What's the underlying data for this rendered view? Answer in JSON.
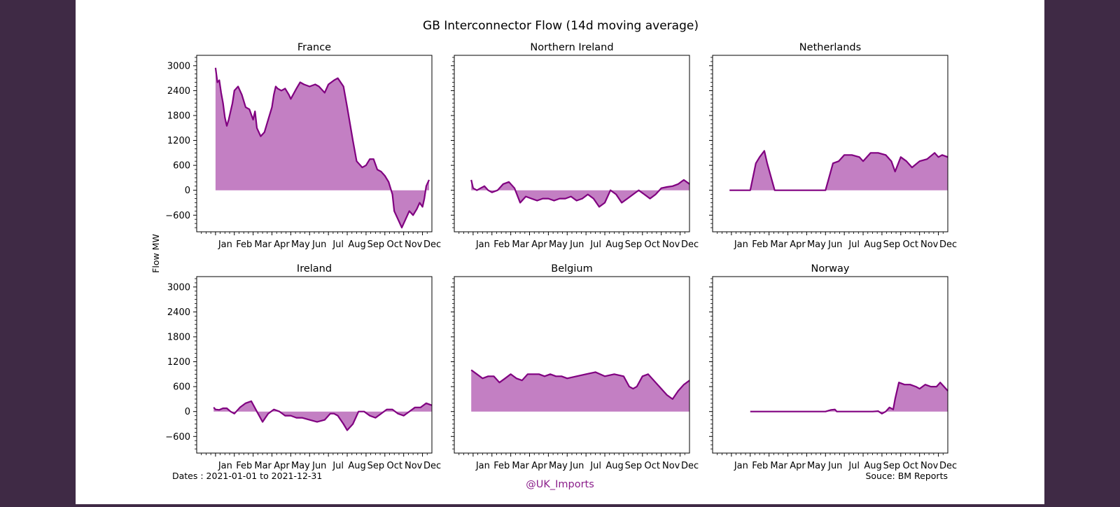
{
  "figure": {
    "title": "GB Interconnector Flow (14d moving average)",
    "ylabel": "Flow MW",
    "dates_note": "Dates : 2021-01-01 to 2021-12-31",
    "credit": "@UK_Imports",
    "source": "Souce: BM Reports",
    "colors": {
      "line": "#800080",
      "fill": "#c37fc3",
      "frame": "#000000"
    }
  },
  "chart_data": [
    {
      "type": "area",
      "title": "France",
      "ylim": [
        -1000,
        3250
      ],
      "months": [
        "Jan",
        "Feb",
        "Mar",
        "Apr",
        "May",
        "Jun",
        "Jul",
        "Aug",
        "Sep",
        "Oct",
        "Nov",
        "Dec"
      ],
      "yticks": [
        -600,
        0,
        600,
        1200,
        1800,
        2400,
        3000
      ],
      "x": [
        1,
        1.1,
        1.2,
        1.3,
        1.4,
        1.5,
        1.6,
        1.7,
        1.8,
        1.9,
        2,
        2.2,
        2.4,
        2.6,
        2.8,
        3,
        3.1,
        3.2,
        3.4,
        3.6,
        3.8,
        4,
        4.1,
        4.2,
        4.3,
        4.5,
        4.7,
        4.9,
        5,
        5.3,
        5.5,
        5.7,
        6,
        6.3,
        6.5,
        6.8,
        7,
        7.3,
        7.5,
        7.8,
        8,
        8.3,
        8.5,
        8.8,
        9,
        9.2,
        9.4,
        9.6,
        9.8,
        10,
        10.2,
        10.4,
        10.5,
        10.7,
        10.9,
        11.1,
        11.3,
        11.5,
        11.7,
        11.85,
        12,
        12.1,
        12.2,
        12.3,
        12.35
      ],
      "y": [
        2950,
        2600,
        2650,
        2350,
        2100,
        1750,
        1550,
        1700,
        1900,
        2100,
        2400,
        2500,
        2300,
        2000,
        1950,
        1700,
        1900,
        1500,
        1300,
        1400,
        1700,
        2000,
        2300,
        2500,
        2450,
        2400,
        2450,
        2300,
        2200,
        2450,
        2600,
        2550,
        2500,
        2550,
        2500,
        2350,
        2550,
        2650,
        2700,
        2500,
        2000,
        1200,
        700,
        550,
        600,
        750,
        750,
        500,
        450,
        350,
        200,
        -100,
        -500,
        -700,
        -900,
        -700,
        -500,
        -600,
        -450,
        -300,
        -400,
        -200,
        100,
        200,
        250
      ]
    },
    {
      "type": "area",
      "title": "Northern Ireland",
      "ylim": [
        -1000,
        3250
      ],
      "months": [
        "Jan",
        "Feb",
        "Mar",
        "Apr",
        "May",
        "Jun",
        "Jul",
        "Aug",
        "Sep",
        "Oct",
        "Nov",
        "Dec"
      ],
      "yticks": [
        -600,
        0,
        600,
        1200,
        1800,
        2400,
        3000
      ],
      "x": [
        0.9,
        1,
        1.2,
        1.4,
        1.6,
        1.8,
        2,
        2.3,
        2.6,
        2.9,
        3.2,
        3.5,
        3.8,
        4.1,
        4.4,
        4.7,
        5,
        5.3,
        5.6,
        5.9,
        6.2,
        6.5,
        6.8,
        7.1,
        7.4,
        7.7,
        8,
        8.3,
        8.6,
        8.9,
        9.2,
        9.5,
        9.8,
        10.1,
        10.4,
        10.7,
        11,
        11.3,
        11.6,
        11.9,
        12.2,
        12.5
      ],
      "y": [
        250,
        50,
        0,
        50,
        100,
        0,
        -50,
        0,
        150,
        200,
        50,
        -300,
        -150,
        -200,
        -250,
        -200,
        -200,
        -250,
        -200,
        -200,
        -150,
        -250,
        -200,
        -100,
        -200,
        -400,
        -300,
        0,
        -100,
        -300,
        -200,
        -100,
        0,
        -100,
        -200,
        -100,
        50,
        80,
        100,
        150,
        250,
        150
      ]
    },
    {
      "type": "area",
      "title": "Netherlands",
      "ylim": [
        -1000,
        3250
      ],
      "months": [
        "Jan",
        "Feb",
        "Mar",
        "Apr",
        "May",
        "Jun",
        "Jul",
        "Aug",
        "Sep",
        "Oct",
        "Nov",
        "Dec"
      ],
      "yticks": [
        -600,
        0,
        600,
        1200,
        1800,
        2400,
        3000
      ],
      "x": [
        0.9,
        2,
        2.3,
        2.5,
        2.75,
        2.9,
        3.3,
        6,
        6.4,
        6.7,
        7,
        7.4,
        7.8,
        8,
        8.4,
        8.8,
        9.2,
        9.5,
        9.7,
        10,
        10.3,
        10.6,
        11,
        11.4,
        11.8,
        12,
        12.2,
        12.5
      ],
      "y": [
        0,
        0,
        650,
        800,
        950,
        650,
        0,
        0,
        650,
        700,
        850,
        850,
        800,
        700,
        900,
        900,
        850,
        700,
        450,
        800,
        700,
        550,
        700,
        750,
        900,
        800,
        850,
        800
      ]
    },
    {
      "type": "area",
      "title": "Ireland",
      "ylim": [
        -1000,
        3250
      ],
      "months": [
        "Jan",
        "Feb",
        "Mar",
        "Apr",
        "May",
        "Jun",
        "Jul",
        "Aug",
        "Sep",
        "Oct",
        "Nov",
        "Dec"
      ],
      "yticks": [
        -600,
        0,
        600,
        1200,
        1800,
        2400,
        3000
      ],
      "x": [
        0.9,
        1,
        1.2,
        1.4,
        1.6,
        1.8,
        2,
        2.3,
        2.6,
        2.9,
        3.2,
        3.5,
        3.8,
        4.1,
        4.4,
        4.7,
        5,
        5.3,
        5.6,
        6,
        6.4,
        6.8,
        7.1,
        7.3,
        7.5,
        7.8,
        8,
        8.3,
        8.6,
        8.9,
        9.2,
        9.5,
        9.8,
        10.1,
        10.4,
        10.7,
        11,
        11.3,
        11.6,
        11.9,
        12.2,
        12.5
      ],
      "y": [
        100,
        50,
        40,
        80,
        80,
        0,
        -50,
        100,
        200,
        250,
        0,
        -250,
        -50,
        50,
        0,
        -100,
        -100,
        -150,
        -150,
        -200,
        -250,
        -200,
        -50,
        -50,
        -100,
        -300,
        -450,
        -300,
        0,
        0,
        -100,
        -150,
        -50,
        50,
        50,
        -50,
        -100,
        0,
        100,
        100,
        200,
        150
      ]
    },
    {
      "type": "area",
      "title": "Belgium",
      "ylim": [
        -1000,
        3250
      ],
      "months": [
        "Jan",
        "Feb",
        "Mar",
        "Apr",
        "May",
        "Jun",
        "Jul",
        "Aug",
        "Sep",
        "Oct",
        "Nov",
        "Dec"
      ],
      "yticks": [
        -600,
        0,
        600,
        1200,
        1800,
        2400,
        3000
      ],
      "x": [
        0.9,
        1.2,
        1.5,
        1.8,
        2.1,
        2.4,
        2.7,
        3,
        3.3,
        3.6,
        3.9,
        4.2,
        4.5,
        4.8,
        5.1,
        5.4,
        5.7,
        6,
        6.5,
        7,
        7.5,
        8,
        8.5,
        9,
        9.3,
        9.5,
        9.7,
        10,
        10.3,
        10.6,
        11,
        11.3,
        11.6,
        11.9,
        12.2,
        12.5
      ],
      "y": [
        1000,
        900,
        800,
        850,
        850,
        700,
        800,
        900,
        800,
        750,
        900,
        900,
        900,
        850,
        900,
        850,
        850,
        800,
        850,
        900,
        950,
        850,
        900,
        850,
        600,
        550,
        600,
        850,
        900,
        750,
        550,
        400,
        300,
        500,
        650,
        750
      ]
    },
    {
      "type": "area",
      "title": "Norway",
      "ylim": [
        -1000,
        3250
      ],
      "months": [
        "Jan",
        "Feb",
        "Mar",
        "Apr",
        "May",
        "Jun",
        "Jul",
        "Aug",
        "Sep",
        "Oct",
        "Nov",
        "Dec"
      ],
      "yticks": [
        -600,
        0,
        600,
        1200,
        1800,
        2400,
        3000
      ],
      "x": [
        2,
        3,
        4,
        5,
        6,
        6.3,
        6.5,
        6.6,
        7,
        7.5,
        8,
        8.5,
        8.8,
        9,
        9.2,
        9.4,
        9.6,
        9.7,
        9.9,
        10.2,
        10.5,
        10.8,
        11,
        11.3,
        11.6,
        11.9,
        12.1,
        12.3,
        12.5
      ],
      "y": [
        0,
        0,
        0,
        0,
        0,
        40,
        50,
        0,
        0,
        0,
        0,
        0,
        10,
        -50,
        0,
        100,
        50,
        300,
        700,
        650,
        650,
        600,
        550,
        650,
        600,
        600,
        700,
        600,
        500
      ]
    }
  ]
}
